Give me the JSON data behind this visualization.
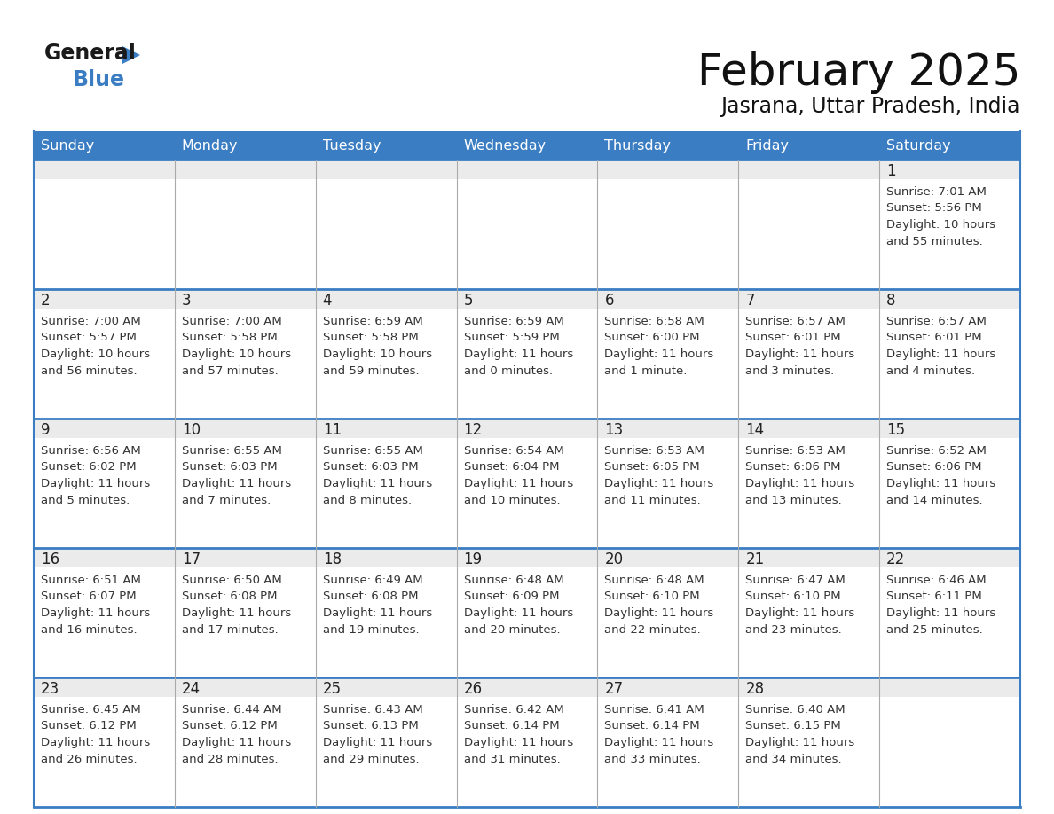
{
  "title": "February 2025",
  "subtitle": "Jasrana, Uttar Pradesh, India",
  "days_of_week": [
    "Sunday",
    "Monday",
    "Tuesday",
    "Wednesday",
    "Thursday",
    "Friday",
    "Saturday"
  ],
  "header_bg_color": "#3A7DC3",
  "header_text_color": "#FFFFFF",
  "cell_top_bg": "#EBEBEB",
  "cell_body_bg": "#FFFFFF",
  "border_color": "#3A7DC3",
  "sep_color": "#AAAAAA",
  "day_number_color": "#222222",
  "text_color": "#333333",
  "title_color": "#111111",
  "logo_black": "#1A1A1A",
  "logo_blue": "#3A7DC3",
  "calendar_data": [
    [
      {
        "day": null,
        "sunrise": null,
        "sunset": null,
        "daylight_line1": null,
        "daylight_line2": null
      },
      {
        "day": null,
        "sunrise": null,
        "sunset": null,
        "daylight_line1": null,
        "daylight_line2": null
      },
      {
        "day": null,
        "sunrise": null,
        "sunset": null,
        "daylight_line1": null,
        "daylight_line2": null
      },
      {
        "day": null,
        "sunrise": null,
        "sunset": null,
        "daylight_line1": null,
        "daylight_line2": null
      },
      {
        "day": null,
        "sunrise": null,
        "sunset": null,
        "daylight_line1": null,
        "daylight_line2": null
      },
      {
        "day": null,
        "sunrise": null,
        "sunset": null,
        "daylight_line1": null,
        "daylight_line2": null
      },
      {
        "day": 1,
        "sunrise": "7:01 AM",
        "sunset": "5:56 PM",
        "daylight_line1": "10 hours",
        "daylight_line2": "and 55 minutes."
      }
    ],
    [
      {
        "day": 2,
        "sunrise": "7:00 AM",
        "sunset": "5:57 PM",
        "daylight_line1": "10 hours",
        "daylight_line2": "and 56 minutes."
      },
      {
        "day": 3,
        "sunrise": "7:00 AM",
        "sunset": "5:58 PM",
        "daylight_line1": "10 hours",
        "daylight_line2": "and 57 minutes."
      },
      {
        "day": 4,
        "sunrise": "6:59 AM",
        "sunset": "5:58 PM",
        "daylight_line1": "10 hours",
        "daylight_line2": "and 59 minutes."
      },
      {
        "day": 5,
        "sunrise": "6:59 AM",
        "sunset": "5:59 PM",
        "daylight_line1": "11 hours",
        "daylight_line2": "and 0 minutes."
      },
      {
        "day": 6,
        "sunrise": "6:58 AM",
        "sunset": "6:00 PM",
        "daylight_line1": "11 hours",
        "daylight_line2": "and 1 minute."
      },
      {
        "day": 7,
        "sunrise": "6:57 AM",
        "sunset": "6:01 PM",
        "daylight_line1": "11 hours",
        "daylight_line2": "and 3 minutes."
      },
      {
        "day": 8,
        "sunrise": "6:57 AM",
        "sunset": "6:01 PM",
        "daylight_line1": "11 hours",
        "daylight_line2": "and 4 minutes."
      }
    ],
    [
      {
        "day": 9,
        "sunrise": "6:56 AM",
        "sunset": "6:02 PM",
        "daylight_line1": "11 hours",
        "daylight_line2": "and 5 minutes."
      },
      {
        "day": 10,
        "sunrise": "6:55 AM",
        "sunset": "6:03 PM",
        "daylight_line1": "11 hours",
        "daylight_line2": "and 7 minutes."
      },
      {
        "day": 11,
        "sunrise": "6:55 AM",
        "sunset": "6:03 PM",
        "daylight_line1": "11 hours",
        "daylight_line2": "and 8 minutes."
      },
      {
        "day": 12,
        "sunrise": "6:54 AM",
        "sunset": "6:04 PM",
        "daylight_line1": "11 hours",
        "daylight_line2": "and 10 minutes."
      },
      {
        "day": 13,
        "sunrise": "6:53 AM",
        "sunset": "6:05 PM",
        "daylight_line1": "11 hours",
        "daylight_line2": "and 11 minutes."
      },
      {
        "day": 14,
        "sunrise": "6:53 AM",
        "sunset": "6:06 PM",
        "daylight_line1": "11 hours",
        "daylight_line2": "and 13 minutes."
      },
      {
        "day": 15,
        "sunrise": "6:52 AM",
        "sunset": "6:06 PM",
        "daylight_line1": "11 hours",
        "daylight_line2": "and 14 minutes."
      }
    ],
    [
      {
        "day": 16,
        "sunrise": "6:51 AM",
        "sunset": "6:07 PM",
        "daylight_line1": "11 hours",
        "daylight_line2": "and 16 minutes."
      },
      {
        "day": 17,
        "sunrise": "6:50 AM",
        "sunset": "6:08 PM",
        "daylight_line1": "11 hours",
        "daylight_line2": "and 17 minutes."
      },
      {
        "day": 18,
        "sunrise": "6:49 AM",
        "sunset": "6:08 PM",
        "daylight_line1": "11 hours",
        "daylight_line2": "and 19 minutes."
      },
      {
        "day": 19,
        "sunrise": "6:48 AM",
        "sunset": "6:09 PM",
        "daylight_line1": "11 hours",
        "daylight_line2": "and 20 minutes."
      },
      {
        "day": 20,
        "sunrise": "6:48 AM",
        "sunset": "6:10 PM",
        "daylight_line1": "11 hours",
        "daylight_line2": "and 22 minutes."
      },
      {
        "day": 21,
        "sunrise": "6:47 AM",
        "sunset": "6:10 PM",
        "daylight_line1": "11 hours",
        "daylight_line2": "and 23 minutes."
      },
      {
        "day": 22,
        "sunrise": "6:46 AM",
        "sunset": "6:11 PM",
        "daylight_line1": "11 hours",
        "daylight_line2": "and 25 minutes."
      }
    ],
    [
      {
        "day": 23,
        "sunrise": "6:45 AM",
        "sunset": "6:12 PM",
        "daylight_line1": "11 hours",
        "daylight_line2": "and 26 minutes."
      },
      {
        "day": 24,
        "sunrise": "6:44 AM",
        "sunset": "6:12 PM",
        "daylight_line1": "11 hours",
        "daylight_line2": "and 28 minutes."
      },
      {
        "day": 25,
        "sunrise": "6:43 AM",
        "sunset": "6:13 PM",
        "daylight_line1": "11 hours",
        "daylight_line2": "and 29 minutes."
      },
      {
        "day": 26,
        "sunrise": "6:42 AM",
        "sunset": "6:14 PM",
        "daylight_line1": "11 hours",
        "daylight_line2": "and 31 minutes."
      },
      {
        "day": 27,
        "sunrise": "6:41 AM",
        "sunset": "6:14 PM",
        "daylight_line1": "11 hours",
        "daylight_line2": "and 33 minutes."
      },
      {
        "day": 28,
        "sunrise": "6:40 AM",
        "sunset": "6:15 PM",
        "daylight_line1": "11 hours",
        "daylight_line2": "and 34 minutes."
      },
      {
        "day": null,
        "sunrise": null,
        "sunset": null,
        "daylight_line1": null,
        "daylight_line2": null
      }
    ]
  ]
}
